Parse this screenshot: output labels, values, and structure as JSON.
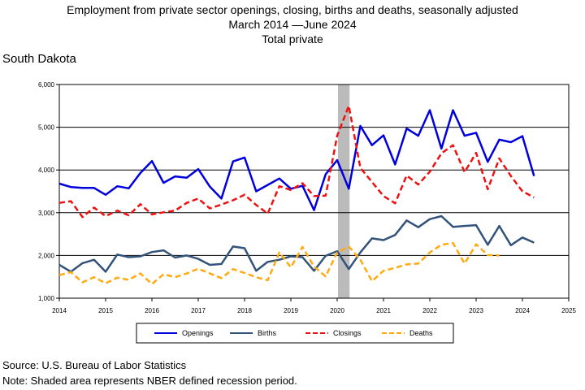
{
  "title": {
    "line1": "Employment from private sector openings, closing, births and deaths, seasonally adjusted",
    "line2": "March 2014 —June 2024",
    "line3": "Total private"
  },
  "region": "South Dakota",
  "footer": {
    "source": "Source: U.S. Bureau of Labor Statistics",
    "note": "Note: Shaded area represents NBER defined recession period."
  },
  "colors": {
    "openings": "#0000dd",
    "births": "#34537a",
    "closings": "#ee1111",
    "deaths": "#ffaa11",
    "recession": "#bbbbbb",
    "grid": "#000000"
  },
  "chart_data": {
    "type": "line",
    "xlim": [
      2014,
      2025
    ],
    "ylim": [
      1000,
      6000
    ],
    "x_ticks": [
      "2014",
      "2015",
      "2016",
      "2017",
      "2018",
      "2019",
      "2020",
      "2021",
      "2022",
      "2023",
      "2024",
      "2025"
    ],
    "y_ticks": [
      "1,000",
      "2,000",
      "3,000",
      "4,000",
      "5,000",
      "6,000"
    ],
    "grid": "horizontal",
    "legend_position": "bottom",
    "recession": [
      2020.0,
      2020.25
    ],
    "x": [
      2014.0,
      2014.25,
      2014.5,
      2014.75,
      2015.0,
      2015.25,
      2015.5,
      2015.75,
      2016.0,
      2016.25,
      2016.5,
      2016.75,
      2017.0,
      2017.25,
      2017.5,
      2017.75,
      2018.0,
      2018.25,
      2018.5,
      2018.75,
      2019.0,
      2019.25,
      2019.5,
      2019.75,
      2020.0,
      2020.25,
      2020.5,
      2020.75,
      2021.0,
      2021.25,
      2021.5,
      2021.75,
      2022.0,
      2022.25,
      2022.5,
      2022.75,
      2023.0,
      2023.25,
      2023.5,
      2023.75,
      2024.0,
      2024.25
    ],
    "series": [
      {
        "name": "Openings",
        "key": "openings",
        "dash": "none",
        "values": [
          3680,
          3600,
          3580,
          3580,
          3420,
          3620,
          3570,
          3930,
          4210,
          3700,
          3850,
          3820,
          4020,
          3610,
          3330,
          4200,
          4290,
          3500,
          3650,
          3800,
          3560,
          3630,
          3060,
          3900,
          4230,
          3560,
          5030,
          4580,
          4810,
          4130,
          4970,
          4800,
          5400,
          4500,
          5400,
          4800,
          4870,
          4190,
          4710,
          4650,
          4790,
          3860
        ]
      },
      {
        "name": "Births",
        "key": "births",
        "dash": "none",
        "values": [
          1780,
          1620,
          1820,
          1900,
          1620,
          2020,
          1960,
          1980,
          2080,
          2120,
          1950,
          2000,
          1920,
          1780,
          1800,
          2210,
          2170,
          1640,
          1850,
          1900,
          1980,
          1960,
          1640,
          1990,
          2100,
          1680,
          2070,
          2400,
          2360,
          2480,
          2820,
          2660,
          2850,
          2920,
          2670,
          2690,
          2710,
          2250,
          2690,
          2240,
          2420,
          2300
        ]
      },
      {
        "name": "Closings",
        "key": "closings",
        "dash": "7,4",
        "values": [
          3230,
          3270,
          2900,
          3120,
          2920,
          3050,
          2940,
          3200,
          2960,
          3010,
          3050,
          3230,
          3330,
          3100,
          3190,
          3290,
          3420,
          3180,
          2980,
          3620,
          3530,
          3690,
          3390,
          3400,
          4800,
          5500,
          4050,
          3720,
          3390,
          3220,
          3870,
          3660,
          3960,
          4390,
          4580,
          3950,
          4400,
          3550,
          4270,
          3860,
          3500,
          3360
        ]
      },
      {
        "name": "Deaths",
        "key": "deaths",
        "dash": "7,4",
        "values": [
          1540,
          1610,
          1370,
          1490,
          1350,
          1480,
          1430,
          1580,
          1330,
          1560,
          1490,
          1580,
          1690,
          1580,
          1470,
          1680,
          1590,
          1490,
          1420,
          2070,
          1720,
          2200,
          1740,
          1510,
          2070,
          2210,
          1900,
          1400,
          1640,
          1710,
          1790,
          1810,
          2070,
          2250,
          2290,
          1810,
          2260,
          2010,
          2000,
          null,
          null,
          null
        ]
      }
    ]
  }
}
